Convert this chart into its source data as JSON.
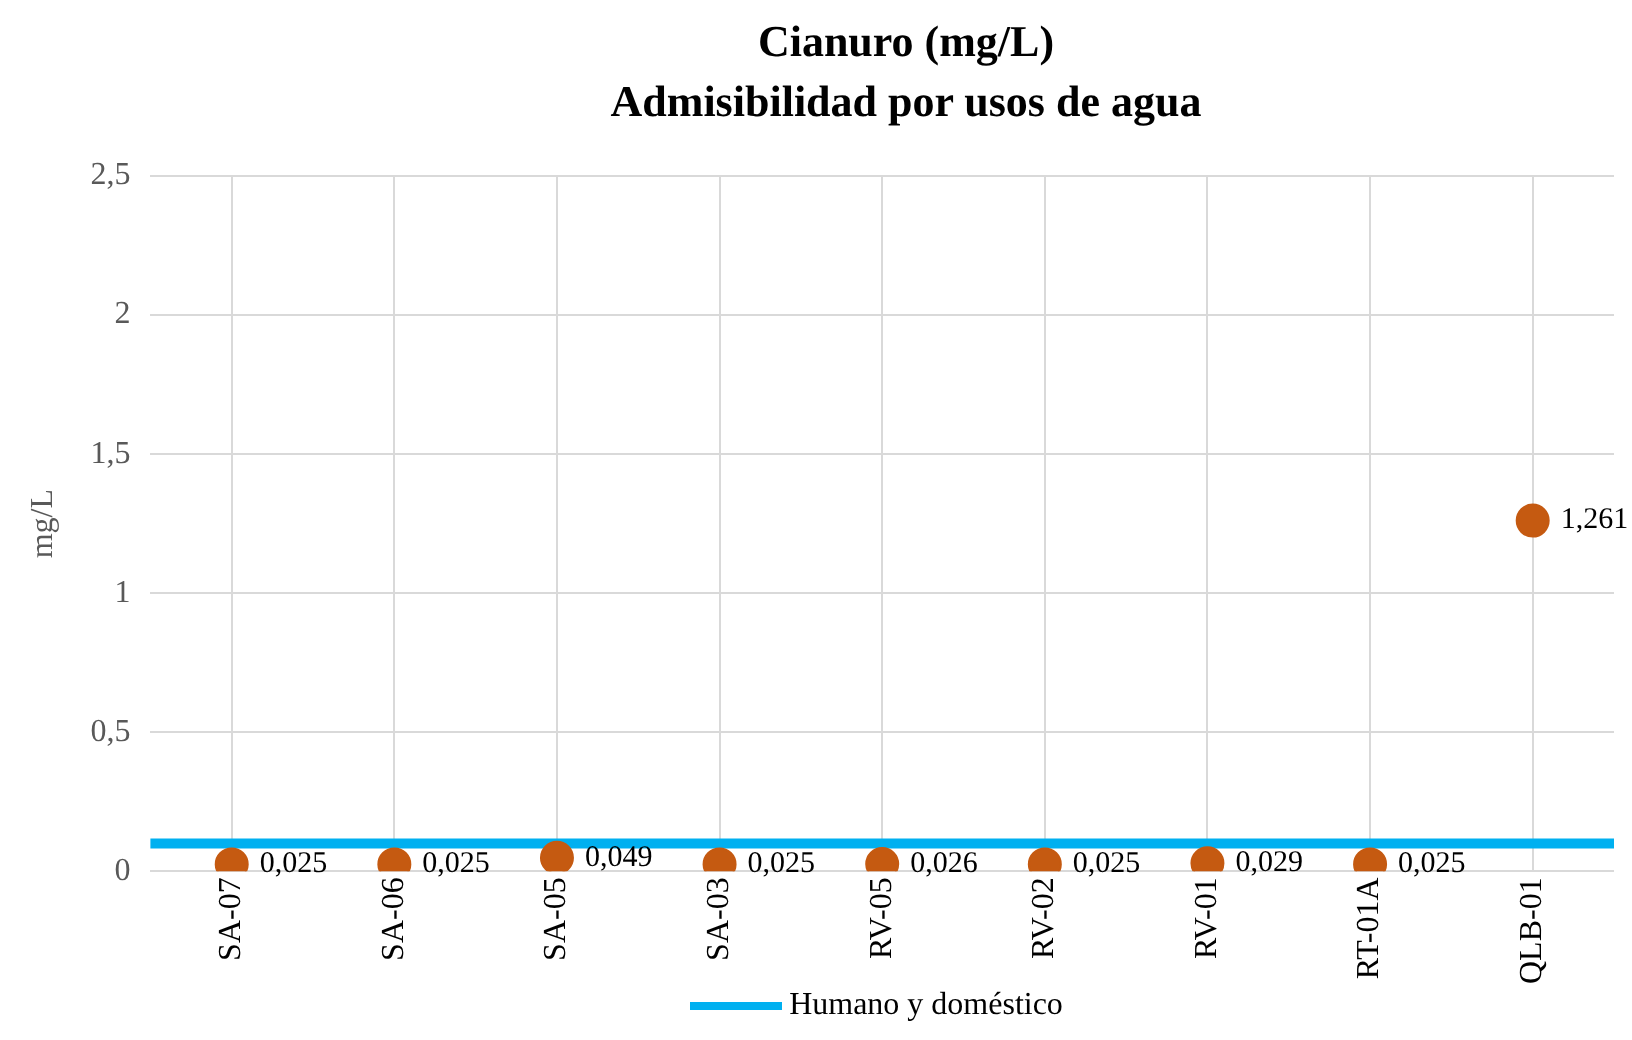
{
  "chart_data": {
    "type": "scatter",
    "title": "Cianuro  (mg/L)",
    "subtitle": "Admisibilidad por usos de agua",
    "ylabel": "mg/L",
    "categories": [
      "SA-07",
      "SA-06",
      "SA-05",
      "SA-03",
      "RV-05",
      "RV-02",
      "RV-01",
      "RT-01A",
      "QLB-01"
    ],
    "series": [
      {
        "color": "#c55a11",
        "values": [
          0.025,
          0.025,
          0.049,
          0.025,
          0.026,
          0.025,
          0.029,
          0.025,
          1.261
        ],
        "value_labels": [
          "0,025",
          "0,025",
          "0,049",
          "0,025",
          "0,026",
          "0,025",
          "0,029",
          "0,025",
          "1,261"
        ]
      }
    ],
    "ylim": [
      0,
      2.5
    ],
    "yticks": [
      0,
      {
        "value": 0.5,
        "label": "0,5"
      },
      1,
      {
        "value": 1.5,
        "label": "1,5"
      },
      2,
      {
        "value": 2.5,
        "label": "2,5"
      }
    ],
    "ref_lines": [
      {
        "axis": "y",
        "value": 0.1,
        "label": "Humano y doméstico",
        "color": "#00b0f0"
      }
    ],
    "grid": true,
    "legend": "bottom",
    "marker": "circle"
  }
}
